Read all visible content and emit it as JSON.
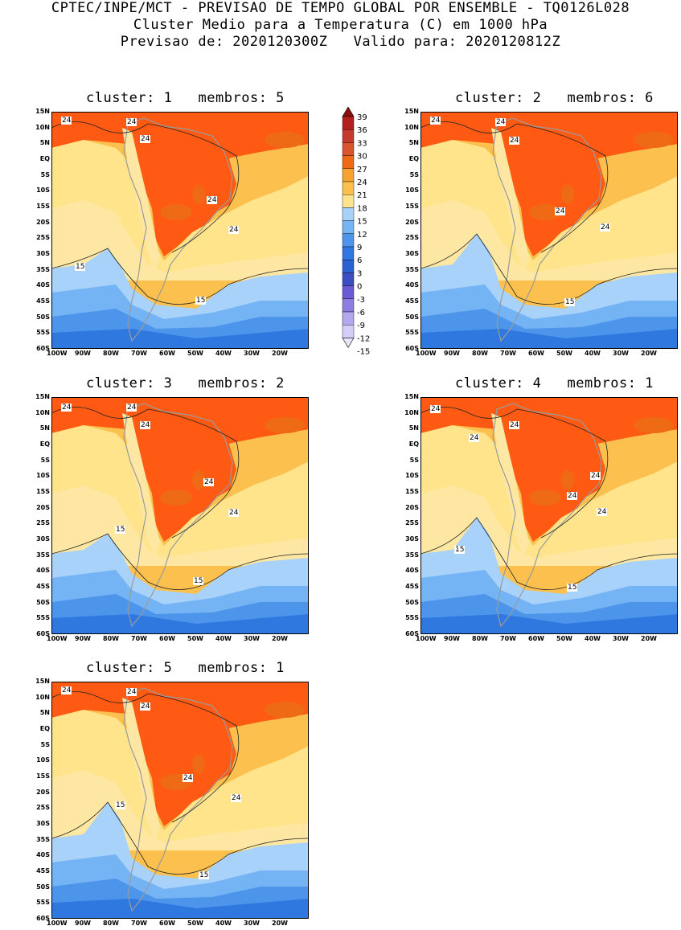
{
  "header": {
    "line1": "CPTEC/INPE/MCT - PREVISAO DE TEMPO GLOBAL POR ENSEMBLE - TQ0126L028",
    "line2": "Cluster Medio para a Temperatura (C) em 1000 hPa",
    "line3": "Previsao de: 2020120300Z   Valido para: 2020120812Z"
  },
  "axes": {
    "lat_labels": [
      "15N",
      "10N",
      "5N",
      "EQ",
      "5S",
      "10S",
      "15S",
      "20S",
      "25S",
      "30S",
      "35S",
      "40S",
      "45S",
      "50S",
      "55S",
      "60S"
    ],
    "lon_labels": [
      "100W",
      "90W",
      "80W",
      "70W",
      "60W",
      "50W",
      "40W",
      "30W",
      "20W"
    ]
  },
  "colorbar": {
    "labels": [
      "39",
      "36",
      "33",
      "30",
      "27",
      "24",
      "21",
      "18",
      "15",
      "12",
      "9",
      "6",
      "3",
      "0",
      "-3",
      "-6",
      "-9",
      "-12",
      "-15"
    ],
    "colors": [
      "#b11f1f",
      "#c63a2e",
      "#d8552d",
      "#ee6a15",
      "#f7a22e",
      "#fbc04d",
      "#ffe48c",
      "#a8d2f9",
      "#74b3f4",
      "#4c95eb",
      "#2f78e0",
      "#2a62d4",
      "#3d4ec2",
      "#6a5ad6",
      "#8e7ee3",
      "#b4a6ef",
      "#d6cdf8"
    ],
    "top_color": "#8a0f0f",
    "bottom_color": "#ece5ff"
  },
  "panels": [
    {
      "title": "cluster: 1   membros: 5",
      "contour_labels": [
        "24",
        "24",
        "24",
        "24",
        "24",
        "15",
        "15"
      ]
    },
    {
      "title": "cluster: 2   membros: 6",
      "contour_labels": [
        "24",
        "24",
        "24",
        "24",
        "24",
        "15"
      ]
    },
    {
      "title": "cluster: 3   membros: 2",
      "contour_labels": [
        "24",
        "24",
        "24",
        "24",
        "24",
        "15",
        "15"
      ]
    },
    {
      "title": "cluster: 4   membros: 1",
      "contour_labels": [
        "24",
        "24",
        "24",
        "24",
        "24",
        "24",
        "15",
        "15"
      ]
    },
    {
      "title": "cluster: 5   membros: 1",
      "contour_labels": [
        "24",
        "24",
        "24",
        "24",
        "24",
        "15",
        "15"
      ]
    }
  ]
}
